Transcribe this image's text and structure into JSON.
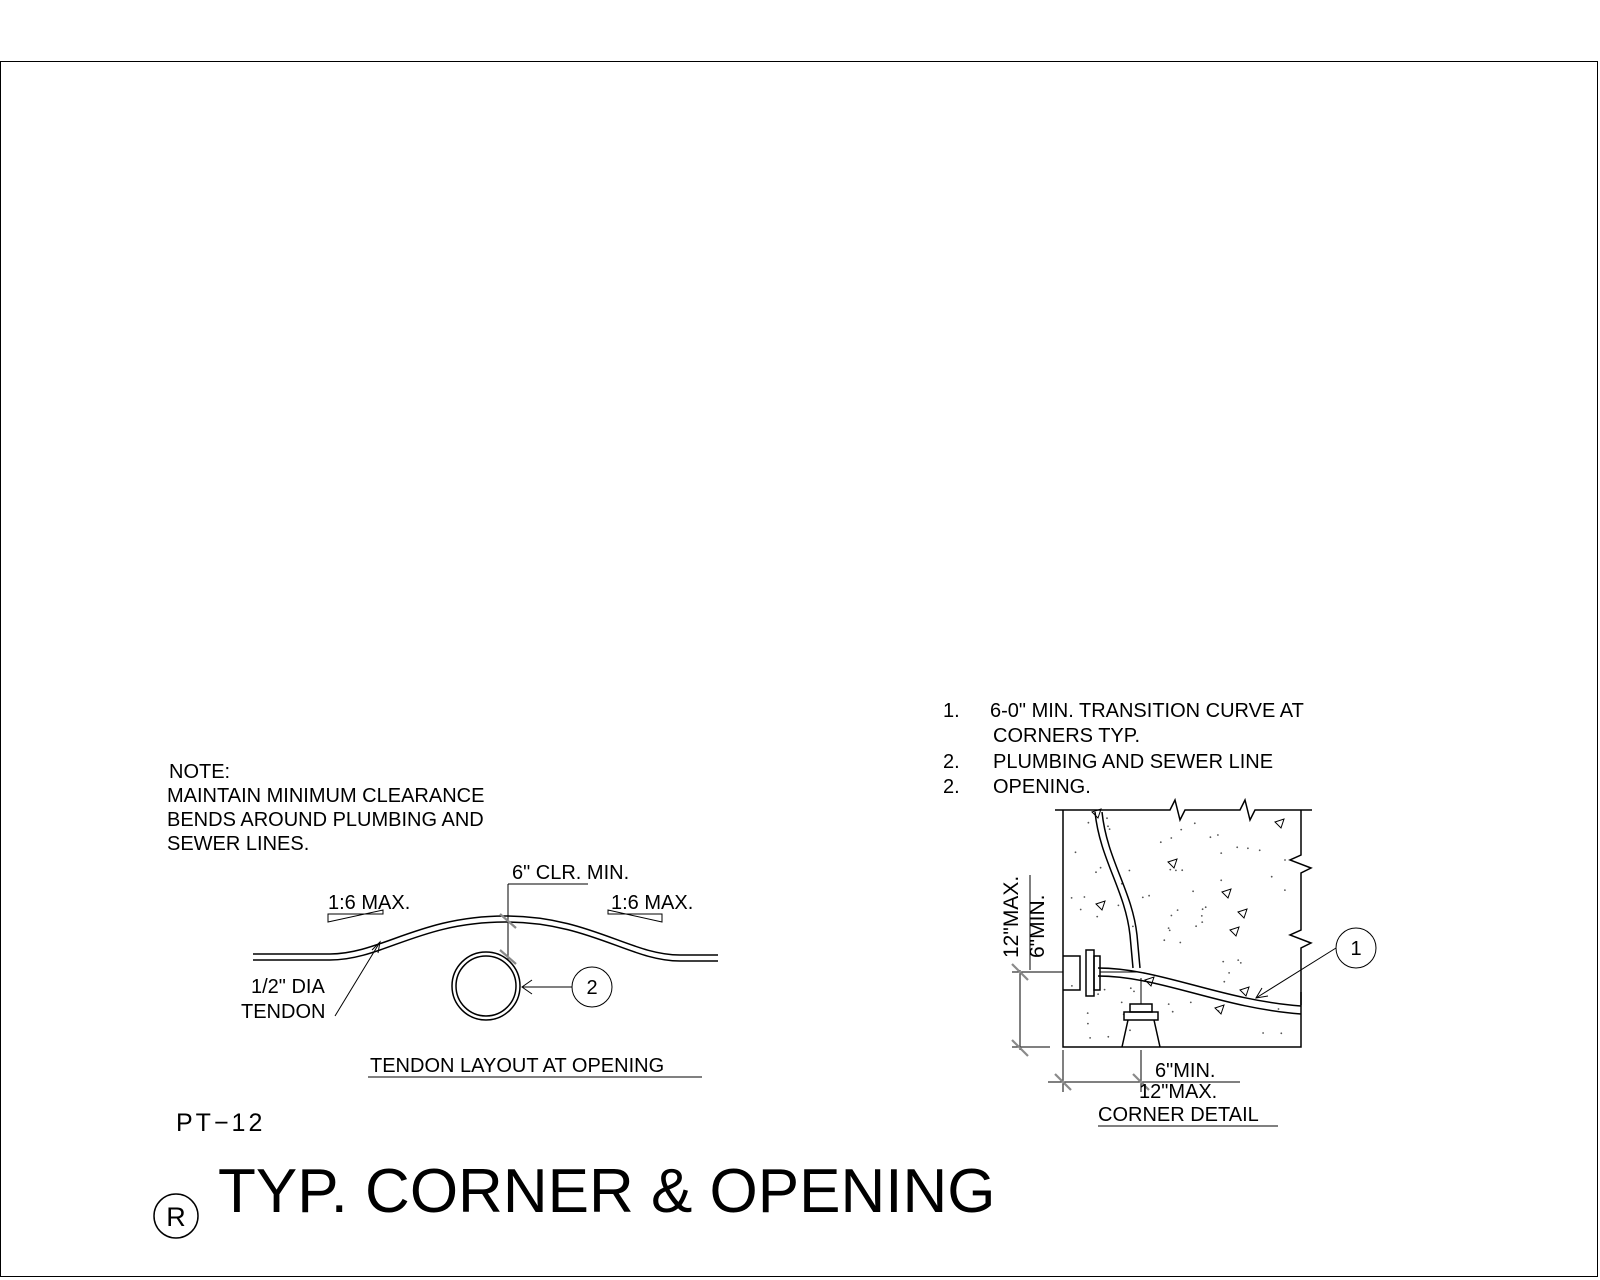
{
  "sheet_id": "PT−12",
  "title": "TYP. CORNER & OPENING",
  "title_mark": "R",
  "tendon_layout": {
    "note_heading": "NOTE:",
    "note_lines": [
      "MAINTAIN MINIMUM CLEARANCE",
      "BENDS AROUND PLUMBING AND",
      "SEWER LINES."
    ],
    "clearance_label": "6\" CLR. MIN.",
    "slope_left": "1:6 MAX.",
    "slope_right": "1:6 MAX.",
    "tendon_label_1": "1/2\" DIA",
    "tendon_label_2": "TENDON",
    "callout_2": "2",
    "caption": "TENDON LAYOUT AT OPENING"
  },
  "corner_detail": {
    "notes": [
      {
        "num": "1.",
        "text": "6-0\" MIN. TRANSITION  CURVE AT"
      },
      {
        "num": "",
        "text": "CORNERS TYP."
      },
      {
        "num": "2.",
        "text": "PLUMBING AND SEWER LINE"
      },
      {
        "num": "2.",
        "text": "OPENING."
      }
    ],
    "dim_vertical_max": "12\"MAX.",
    "dim_vertical_min": "6\"MIN.",
    "dim_horizontal_min": "6\"MIN.",
    "dim_horizontal_max": "12\"MAX.",
    "callout_1": "1",
    "caption": "CORNER DETAIL"
  }
}
